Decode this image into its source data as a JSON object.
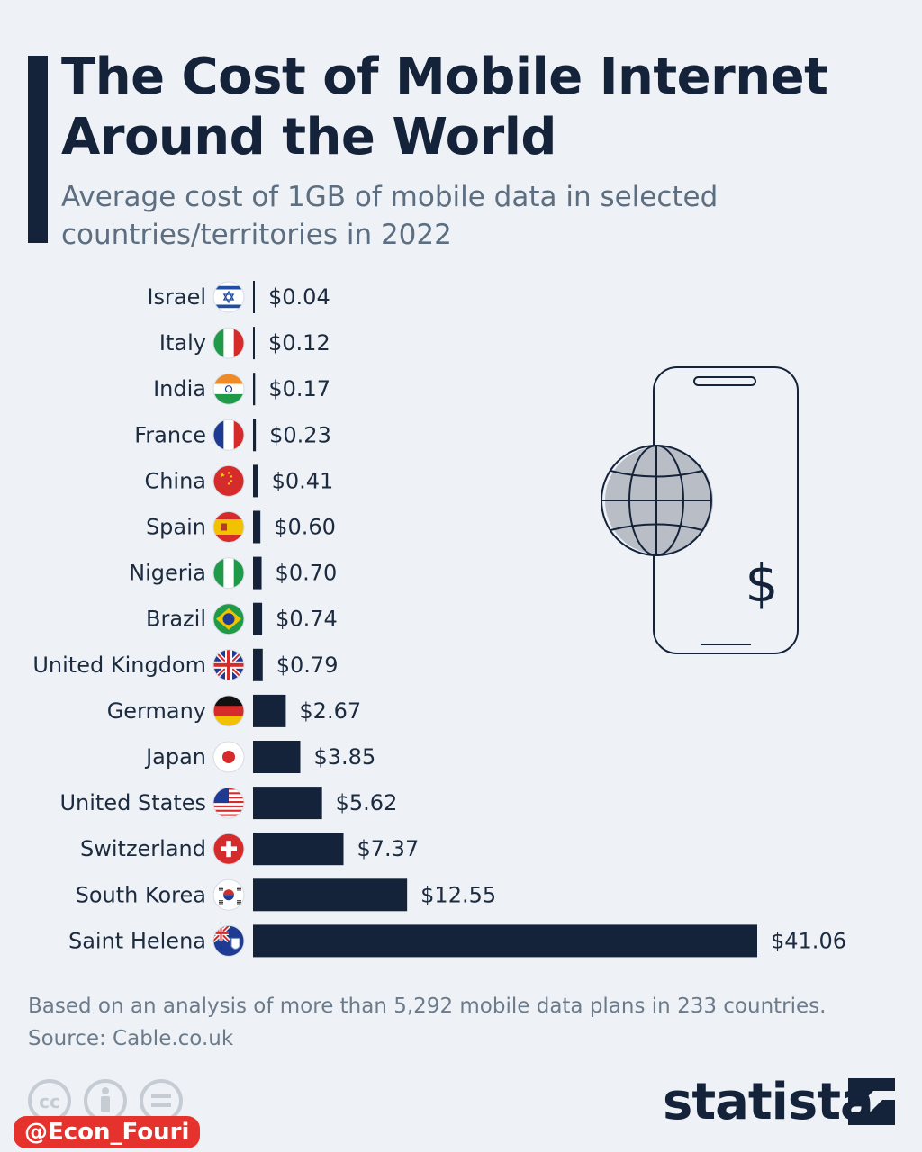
{
  "header": {
    "title_line1": "The Cost of Mobile Internet",
    "title_line2": "Around the World",
    "subtitle_line1": "Average cost of 1GB of mobile data in selected",
    "subtitle_line2": "countries/territories in 2022"
  },
  "chart_data": {
    "type": "bar",
    "orientation": "horizontal",
    "title": "The Cost of Mobile Internet Around the World",
    "subtitle": "Average cost of 1GB of mobile data in selected countries/territories in 2022",
    "unit": "USD",
    "categories": [
      "Israel",
      "Italy",
      "India",
      "France",
      "China",
      "Spain",
      "Nigeria",
      "Brazil",
      "United Kingdom",
      "Germany",
      "Japan",
      "United States",
      "Switzerland",
      "South Korea",
      "Saint Helena"
    ],
    "values": [
      0.04,
      0.12,
      0.17,
      0.23,
      0.41,
      0.6,
      0.7,
      0.74,
      0.79,
      2.67,
      3.85,
      5.62,
      7.37,
      12.55,
      41.06
    ],
    "value_labels": [
      "$0.04",
      "$0.12",
      "$0.17",
      "$0.23",
      "$0.41",
      "$0.60",
      "$0.70",
      "$0.74",
      "$0.79",
      "$2.67",
      "$3.85",
      "$5.62",
      "$7.37",
      "$12.55",
      "$41.06"
    ],
    "flags": [
      "israel-flag-icon",
      "italy-flag-icon",
      "india-flag-icon",
      "france-flag-icon",
      "china-flag-icon",
      "spain-flag-icon",
      "nigeria-flag-icon",
      "brazil-flag-icon",
      "uk-flag-icon",
      "germany-flag-icon",
      "japan-flag-icon",
      "usa-flag-icon",
      "switzerland-flag-icon",
      "south-korea-flag-icon",
      "saint-helena-flag-icon"
    ],
    "xlim": [
      0,
      41.06
    ],
    "grid": false,
    "legend": "none"
  },
  "footer": {
    "note": "Based on an analysis of more than 5,292 mobile data plans in 233 countries.",
    "source": "Source: Cable.co.uk",
    "handle": "@Econ_Fouri",
    "brand": "statista"
  },
  "icons": {
    "illustration": "phone-globe-dollar-icon",
    "license": [
      "cc-icon",
      "by-icon",
      "nd-icon"
    ],
    "logo": "statista-logo-icon"
  },
  "colors": {
    "bar": "#14233a",
    "background": "#eef2f6",
    "title": "#14233a",
    "subtitle": "#5d6e80",
    "handle_bg": "#e5322d"
  }
}
